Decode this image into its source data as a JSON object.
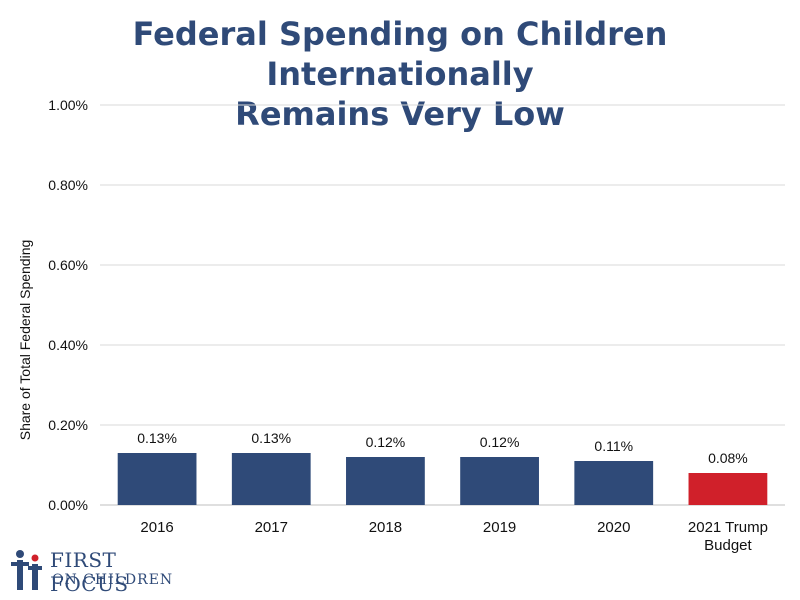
{
  "chart_data": {
    "type": "bar",
    "title_lines": [
      "Federal Spending on Children Internationally",
      "Remains Very Low"
    ],
    "xlabel": "",
    "ylabel": "Share of Total Federal Spending",
    "categories": [
      [
        "2016"
      ],
      [
        "2017"
      ],
      [
        "2018"
      ],
      [
        "2019"
      ],
      [
        "2020"
      ],
      [
        "2021 Trump",
        "Budget"
      ]
    ],
    "values": [
      0.13,
      0.13,
      0.12,
      0.12,
      0.11,
      0.08
    ],
    "data_labels": [
      "0.13%",
      "0.13%",
      "0.12%",
      "0.12%",
      "0.11%",
      "0.08%"
    ],
    "bar_colors": [
      "#2f4a78",
      "#2f4a78",
      "#2f4a78",
      "#2f4a78",
      "#2f4a78",
      "#d0202a"
    ],
    "ylim": [
      0,
      1.0
    ],
    "yticks": [
      0,
      0.2,
      0.4,
      0.6,
      0.8,
      1.0
    ],
    "ytick_labels": [
      "0.00%",
      "0.20%",
      "0.40%",
      "0.60%",
      "0.80%",
      "1.00%"
    ],
    "grid": true,
    "legend": "none"
  },
  "logo": {
    "line1": "FIRST FOCUS",
    "line2": "ON CHILDREN",
    "color": "#2f4a78",
    "accent": "#d0202a"
  }
}
